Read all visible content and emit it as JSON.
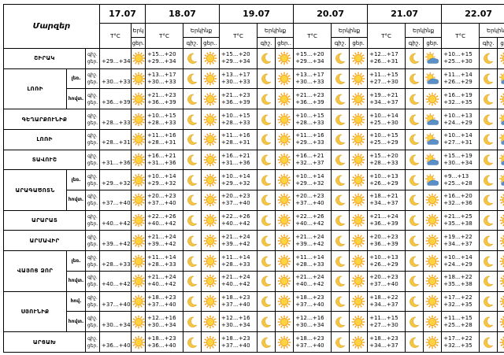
{
  "header": {
    "region_label": "Մարզեր",
    "dates": [
      "17.07",
      "18.07",
      "19.07",
      "20.07",
      "21.07",
      "22.07"
    ],
    "temp_label": "T°C",
    "sky_label": "Երկինք",
    "sky_label_cut": "Երկ",
    "day_label": "ցեր.",
    "night_label": "գիշ.",
    "night_label_dot": "գիշ.",
    "day_label_dot": "ցեր.."
  },
  "rows": [
    {
      "region": "ՇԻՐԱԿ",
      "sub": "",
      "tod": [
        "գիշ.",
        "ցեր."
      ],
      "d0": "+29…+34",
      "temps": [
        [
          "+15…+20",
          "+29…+34"
        ],
        [
          "+15…+20",
          "+29…+34"
        ],
        [
          "+15…+20",
          "+29…+34"
        ],
        [
          "+12…+17",
          "+26…+31"
        ],
        [
          "+10…+15",
          "+25…+30"
        ]
      ],
      "icons": [
        [
          "moon",
          "sun"
        ],
        [
          "moon",
          "sun"
        ],
        [
          "moon",
          "sun"
        ],
        [
          "moon",
          "cloudsun"
        ],
        [
          "moon",
          "sun"
        ]
      ]
    },
    {
      "region": "ԼՈՌԻ",
      "sub": "լեռ.",
      "tod": [
        "գիշ.",
        "ցեր."
      ],
      "d0": "+30…+33",
      "temps": [
        [
          "+13…+17",
          "+30…+33"
        ],
        [
          "+13…+17",
          "+30…+33"
        ],
        [
          "+13…+17",
          "+30…+33"
        ],
        [
          "+11…+15",
          "+27…+30"
        ],
        [
          "+11…+14",
          "+26…+29"
        ]
      ],
      "icons": [
        [
          "moon",
          "sun"
        ],
        [
          "moon",
          "sun"
        ],
        [
          "moon",
          "sun"
        ],
        [
          "moon",
          "cloudsun"
        ],
        [
          "moon",
          "cloudsun"
        ]
      ]
    },
    {
      "region": "",
      "sub": "հովտ.",
      "tod": [
        "գիշ.",
        "ցեր."
      ],
      "d0": "+36…+39",
      "temps": [
        [
          "+21…+23",
          "+36…+39"
        ],
        [
          "+21…+23",
          "+36…+39"
        ],
        [
          "+21…+23",
          "+36…+39"
        ],
        [
          "+19…+21",
          "+34…+37"
        ],
        [
          "+16…+19",
          "+32…+35"
        ]
      ],
      "icons": [
        [
          "moon",
          "sun"
        ],
        [
          "moon",
          "sun"
        ],
        [
          "moon",
          "sun"
        ],
        [
          "moon",
          "sun"
        ],
        [
          "moon",
          "sun"
        ]
      ]
    },
    {
      "region": "ԳԵՂԱՐՔՈՒՆԻՔ",
      "sub": "",
      "tod": [
        "գիշ.",
        "ցեր."
      ],
      "d0": "+28…+33",
      "temps": [
        [
          "+10…+15",
          "+28…+33"
        ],
        [
          "+10…+15",
          "+28…+33"
        ],
        [
          "+10…+15",
          "+28…+33"
        ],
        [
          "+10…+14",
          "+25…+30"
        ],
        [
          "+10…+13",
          "+24…+29"
        ]
      ],
      "icons": [
        [
          "moon",
          "sun"
        ],
        [
          "moon",
          "sun"
        ],
        [
          "moon",
          "sun"
        ],
        [
          "moon",
          "cloudsun"
        ],
        [
          "moon",
          "cloudsun"
        ]
      ]
    },
    {
      "region": "ԼՈՌԻ",
      "sub": "",
      "tod": [
        "գիշ.",
        "ցեր."
      ],
      "d0": "+28…+31",
      "temps": [
        [
          "+11…+16",
          "+28…+31"
        ],
        [
          "+11…+16",
          "+28…+31"
        ],
        [
          "+11…+16",
          "+29…+33"
        ],
        [
          "+10…+15",
          "+25…+29"
        ],
        [
          "+10…+14",
          "+27…+31"
        ]
      ],
      "icons": [
        [
          "moon",
          "sun"
        ],
        [
          "moon",
          "sun"
        ],
        [
          "moon",
          "sun"
        ],
        [
          "moon",
          "cloudsun"
        ],
        [
          "moon",
          "cloudsun"
        ]
      ]
    },
    {
      "region": "ՏԱՎՈՒՇ",
      "sub": "",
      "tod": [
        "գիշ.",
        "ցեր."
      ],
      "d0": "+31…+36",
      "temps": [
        [
          "+16…+21",
          "+31…+36"
        ],
        [
          "+16…+21",
          "+31…+36"
        ],
        [
          "+16…+21",
          "+32…+37"
        ],
        [
          "+15…+20",
          "+28…+33"
        ],
        [
          "+15…+19",
          "+30…+34"
        ]
      ],
      "icons": [
        [
          "moon",
          "sun"
        ],
        [
          "moon",
          "sun"
        ],
        [
          "moon",
          "sun"
        ],
        [
          "moon",
          "cloudsun"
        ],
        [
          "moon",
          "cloudsun"
        ]
      ]
    },
    {
      "region": "ԱՐԱԳԱԾՈՏՆ",
      "sub": "լեռ.",
      "tod": [
        "գիշ.",
        "ցեր."
      ],
      "d0": "+29…+32",
      "temps": [
        [
          "+10…+14",
          "+29…+32"
        ],
        [
          "+10…+14",
          "+29…+32"
        ],
        [
          "+10…+14",
          "+29…+32"
        ],
        [
          "+10…+13",
          "+26…+29"
        ],
        [
          "+9…+13",
          "+25…+28"
        ]
      ],
      "icons": [
        [
          "moon",
          "sun"
        ],
        [
          "moon",
          "sun"
        ],
        [
          "moon",
          "sun"
        ],
        [
          "moon",
          "cloudsun"
        ],
        [
          "moon",
          "cloudsun"
        ]
      ]
    },
    {
      "region": "",
      "sub": "հովտ.",
      "tod": [
        "գիշ.",
        "ցեր."
      ],
      "d0": "+37…+40",
      "temps": [
        [
          "+20…+23",
          "+37…+40"
        ],
        [
          "+20…+23",
          "+37…+40"
        ],
        [
          "+20…+23",
          "+37…+40"
        ],
        [
          "+18…+21",
          "+34…+37"
        ],
        [
          "+16…+20",
          "+32…+36"
        ]
      ],
      "icons": [
        [
          "moon",
          "sun"
        ],
        [
          "moon",
          "sun"
        ],
        [
          "moon",
          "sun"
        ],
        [
          "moon",
          "sun"
        ],
        [
          "moon",
          "sun"
        ]
      ]
    },
    {
      "region": "ԱՐԱՐԱՏ",
      "sub": "",
      "tod": [
        "գիշ.",
        "ցեր."
      ],
      "d0": "+40…+42",
      "temps": [
        [
          "+22…+26",
          "+40…+42"
        ],
        [
          "+22…+26",
          "+40…+42"
        ],
        [
          "+22…+26",
          "+40…+42"
        ],
        [
          "+21…+24",
          "+36…+39"
        ],
        [
          "+21…+25",
          "+35…+38"
        ]
      ],
      "icons": [
        [
          "moon",
          "sun"
        ],
        [
          "moon",
          "sun"
        ],
        [
          "moon",
          "sun"
        ],
        [
          "moon",
          "sun"
        ],
        [
          "moon",
          "sun"
        ]
      ]
    },
    {
      "region": "ԱՐՄԱՎԻՐ",
      "sub": "",
      "tod": [
        "գիշ.",
        "ցեր."
      ],
      "d0": "+39…+42",
      "temps": [
        [
          "+21…+24",
          "+39…+42"
        ],
        [
          "+21…+24",
          "+39…+42"
        ],
        [
          "+21…+24",
          "+39…+42"
        ],
        [
          "+20…+23",
          "+36…+39"
        ],
        [
          "+19…+22",
          "+34…+37"
        ]
      ],
      "icons": [
        [
          "moon",
          "sun"
        ],
        [
          "moon",
          "sun"
        ],
        [
          "moon",
          "sun"
        ],
        [
          "moon",
          "sun"
        ],
        [
          "moon",
          "sun"
        ]
      ]
    },
    {
      "region": "ՎԱՅՈՑ ՁՈՐ",
      "sub": "լեռ.",
      "tod": [
        "գիշ.",
        "ցեր."
      ],
      "d0": "+28…+33",
      "temps": [
        [
          "+11…+14",
          "+28…+33"
        ],
        [
          "+11…+14",
          "+28…+33"
        ],
        [
          "+11…+14",
          "+28…+33"
        ],
        [
          "+10…+13",
          "+26…+29"
        ],
        [
          "+10…+14",
          "+24…+29"
        ]
      ],
      "icons": [
        [
          "moon",
          "sun"
        ],
        [
          "moon",
          "sun"
        ],
        [
          "moon",
          "sun"
        ],
        [
          "moon",
          "sun"
        ],
        [
          "moon",
          "sun"
        ]
      ]
    },
    {
      "region": "",
      "sub": "հովտ.",
      "tod": [
        "գիշ.",
        "ցեր."
      ],
      "d0": "+40…+42",
      "temps": [
        [
          "+21…+24",
          "+40…+42"
        ],
        [
          "+21…+24",
          "+40…+42"
        ],
        [
          "+21…+24",
          "+40…+42"
        ],
        [
          "+20…+23",
          "+37…+40"
        ],
        [
          "+18…+22",
          "+35…+38"
        ]
      ],
      "icons": [
        [
          "moon",
          "sun"
        ],
        [
          "moon",
          "sun"
        ],
        [
          "moon",
          "sun"
        ],
        [
          "moon",
          "sun"
        ],
        [
          "moon",
          "sun"
        ]
      ]
    },
    {
      "region": "ՍՅՈՒՆԻՔ",
      "sub": "հով.",
      "tod": [
        "գիշ.",
        "ցեր."
      ],
      "d0": "+37…+40",
      "temps": [
        [
          "+18…+23",
          "+37…+40"
        ],
        [
          "+18…+23",
          "+37…+40"
        ],
        [
          "+18…+23",
          "+37…+40"
        ],
        [
          "+18…+22",
          "+34…+37"
        ],
        [
          "+17…+22",
          "+32…+35"
        ]
      ],
      "icons": [
        [
          "moon",
          "sun"
        ],
        [
          "moon",
          "sun"
        ],
        [
          "moon",
          "sun"
        ],
        [
          "moon",
          "sun"
        ],
        [
          "moon",
          "sun"
        ]
      ]
    },
    {
      "region": "",
      "sub": "հովտ.",
      "tod": [
        "գիշ.",
        "ցեր."
      ],
      "d0": "+30…+34",
      "temps": [
        [
          "+12…+16",
          "+30…+34"
        ],
        [
          "+12…+16",
          "+30…+34"
        ],
        [
          "+12…+16",
          "+30…+34"
        ],
        [
          "+11…+15",
          "+27…+30"
        ],
        [
          "+11…+15",
          "+25…+28"
        ]
      ],
      "icons": [
        [
          "moon",
          "sun"
        ],
        [
          "moon",
          "sun"
        ],
        [
          "moon",
          "sun"
        ],
        [
          "moon",
          "sun"
        ],
        [
          "moon",
          "sun"
        ]
      ]
    },
    {
      "region": "ԱՐՑԱԽ",
      "sub": "",
      "tod": [
        "գիշ.",
        "ցեր."
      ],
      "d0": "+36…+40",
      "temps": [
        [
          "+18…+23",
          "+36…+40"
        ],
        [
          "+18…+23",
          "+37…+40"
        ],
        [
          "+18…+23",
          "+37…+40"
        ],
        [
          "+18…+23",
          "+34…+37"
        ],
        [
          "+17…+22",
          "+32…+35"
        ]
      ],
      "icons": [
        [
          "moon",
          "sun"
        ],
        [
          "moon",
          "sun"
        ],
        [
          "moon",
          "sun"
        ],
        [
          "moon",
          "sun"
        ],
        [
          "moon",
          "sun"
        ]
      ]
    }
  ],
  "colors": {
    "sun": "#f2a11b",
    "sun_core": "#ffd23f",
    "moon": "#f5c542",
    "cloud": "#5a8fc7"
  }
}
